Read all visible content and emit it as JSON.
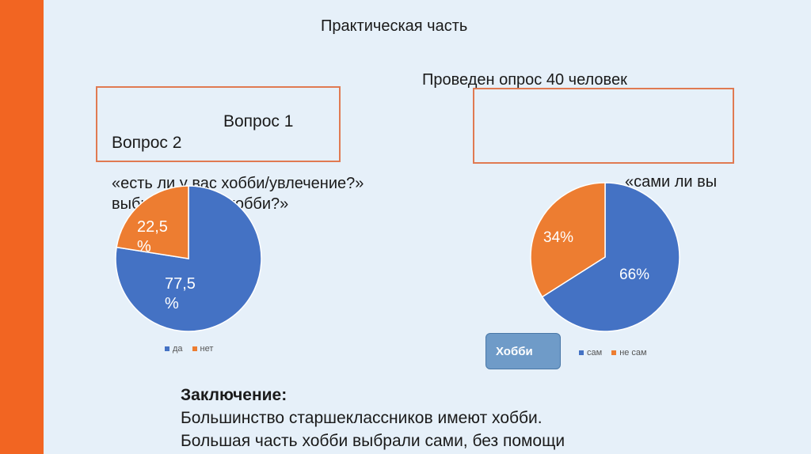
{
  "slide": {
    "title": "Практическая часть",
    "survey_note": "Проведен опрос 40 человек",
    "question1_label": "Вопрос 1",
    "question2_label": "Вопрос 2",
    "question1_text_line1": "«есть ли у вас хобби/увлечение?»",
    "question1_text_line2": "выбрали ли вы хобби?»",
    "question2_text": "«сами ли вы",
    "hobby_button": "Хобби",
    "conclusion_heading": "Заключение:",
    "conclusion_line1": "Большинство старшеклассников имеют хобби.",
    "conclusion_line2": "Большая часть хобби выбрали сами, без помощи"
  },
  "colors": {
    "blue": "#4472c4",
    "orange": "#ed7d31",
    "accent_bar": "#f26522",
    "box_border": "#e07a52"
  },
  "chart_data": [
    {
      "type": "pie",
      "categories": [
        "да",
        "нет"
      ],
      "values": [
        77.5,
        22.5
      ],
      "data_labels": [
        "77,5 %",
        "22,5 %"
      ],
      "legend": "bottom"
    },
    {
      "type": "pie",
      "categories": [
        "сам",
        "не сам"
      ],
      "values": [
        66,
        34
      ],
      "data_labels": [
        "66%",
        "34%"
      ],
      "legend": "bottom"
    }
  ]
}
